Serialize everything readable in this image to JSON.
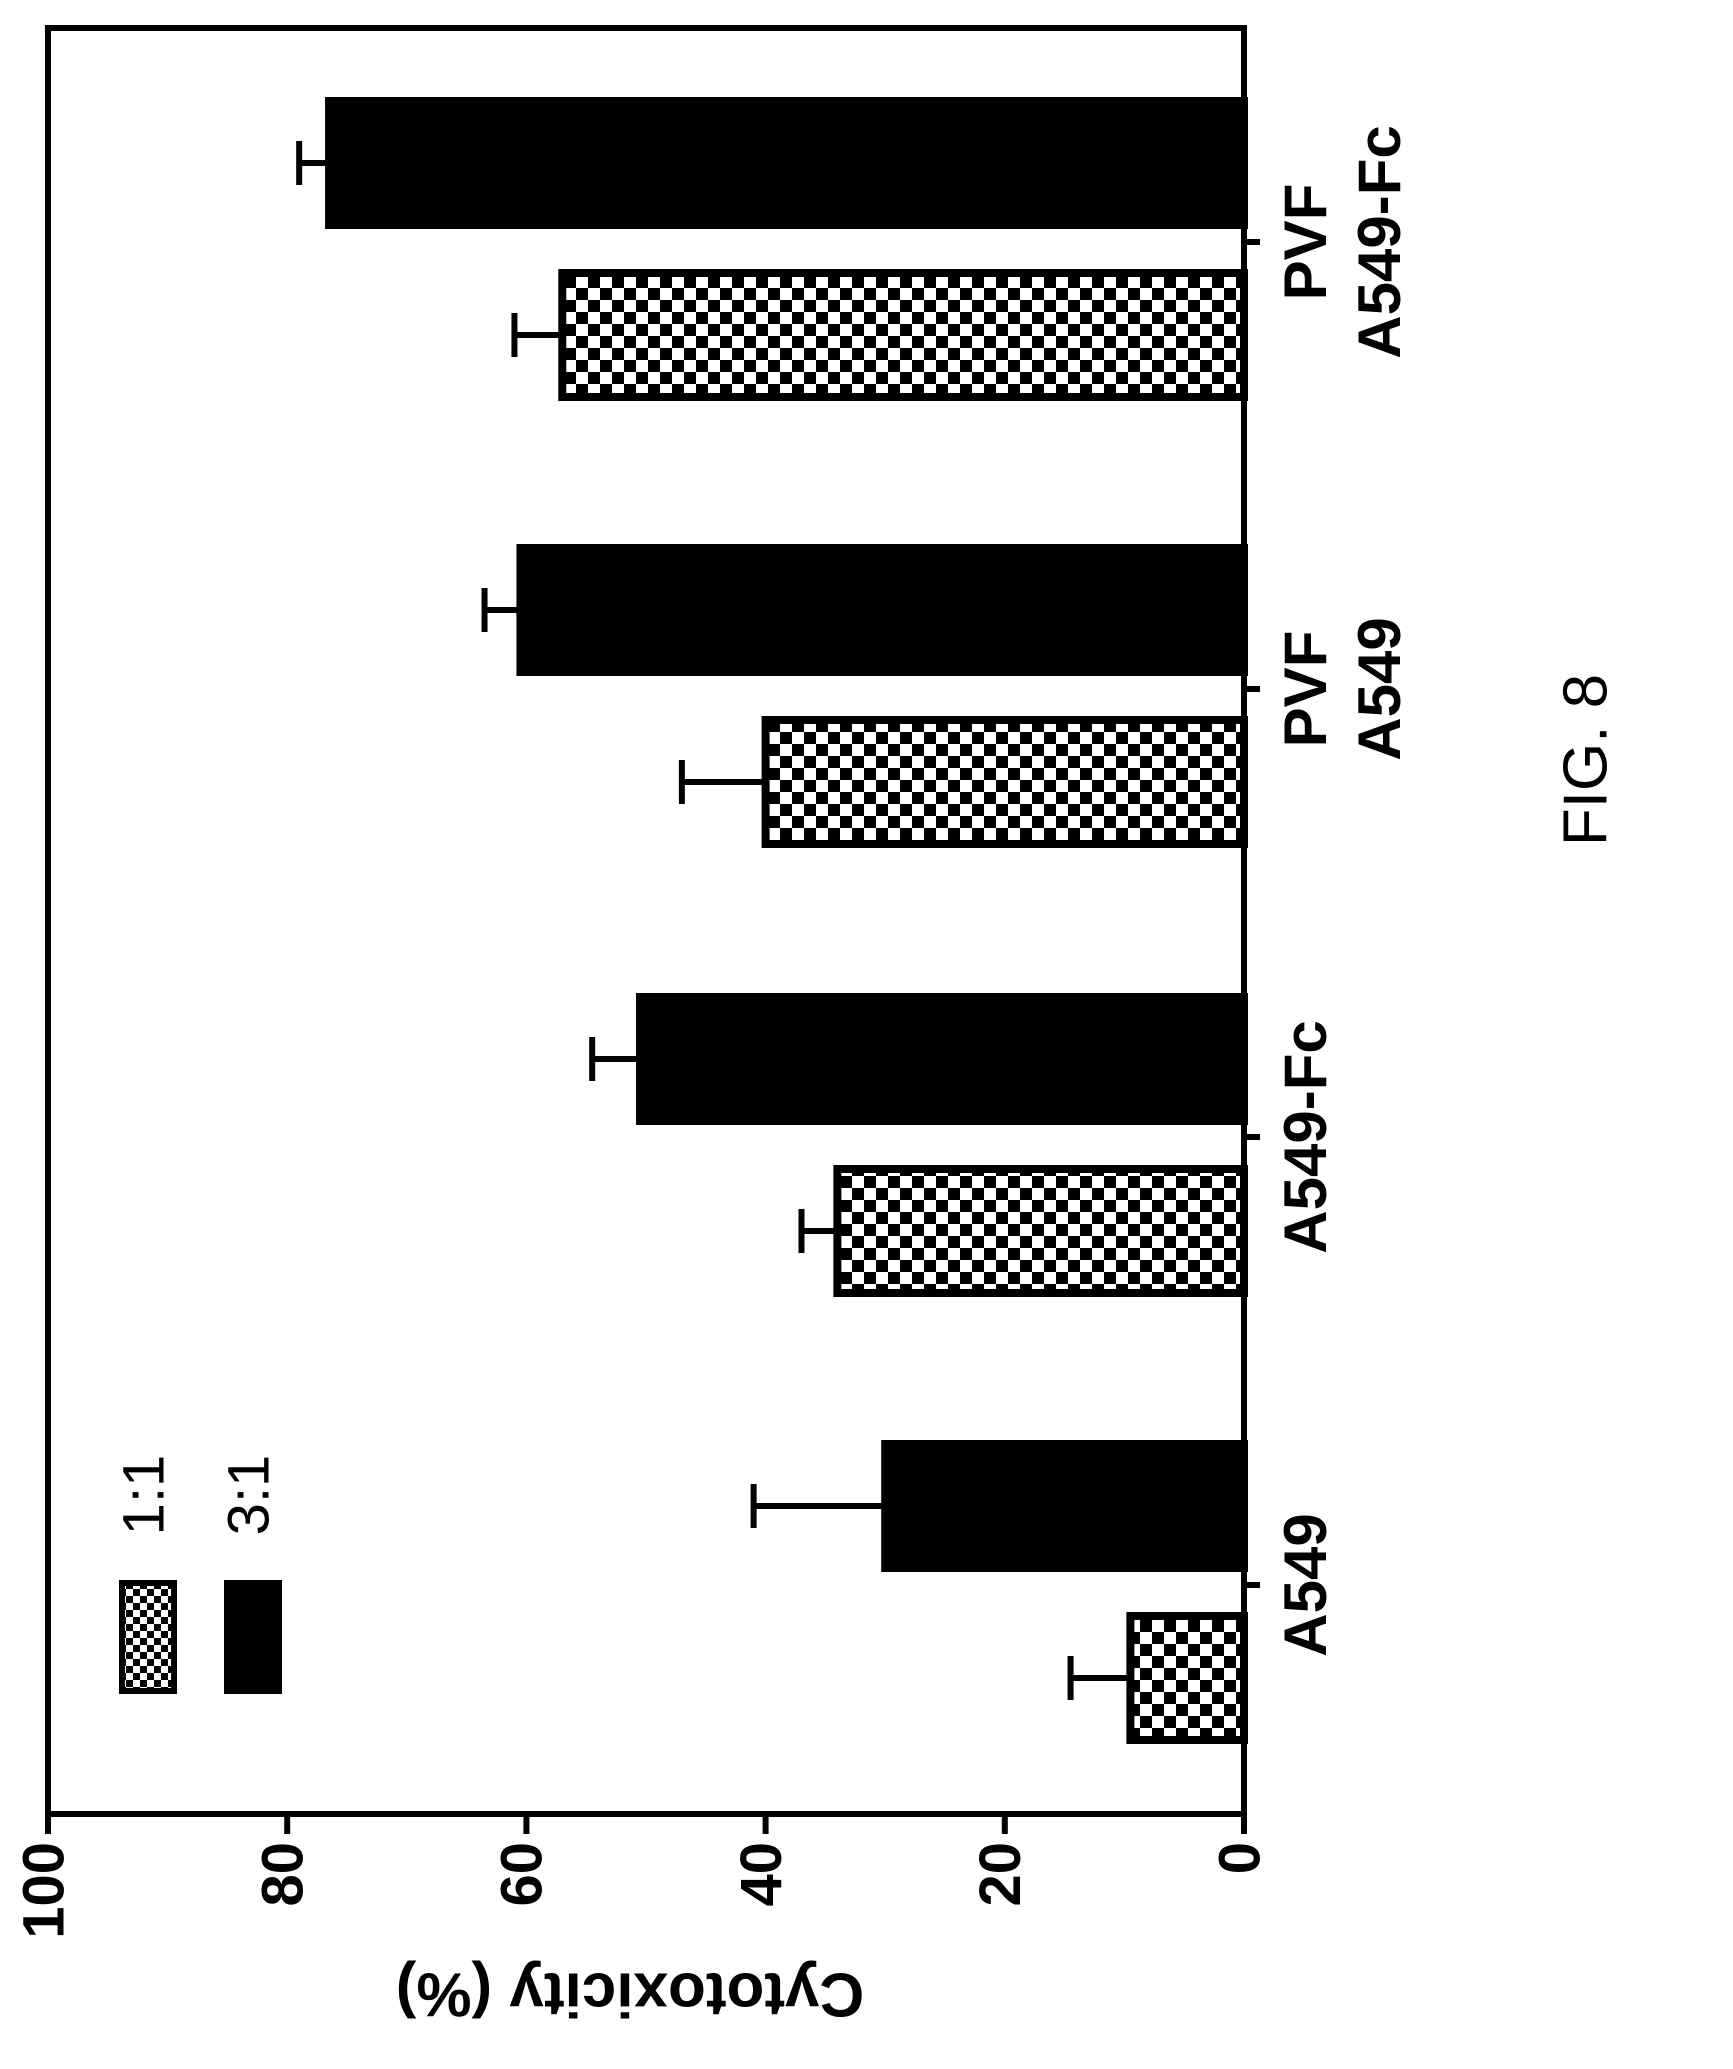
{
  "figure_label": "FIG. 8",
  "colors": {
    "ink": "#000000",
    "paper": "#ffffff"
  },
  "chart_data": {
    "type": "bar",
    "orientation": "horizontal (figure printed rotated 90°)",
    "ylabel": "Cytotoxicity (%)",
    "ylim": [
      0,
      100
    ],
    "yticks": [
      "0",
      "20",
      "40",
      "60",
      "80",
      "100"
    ],
    "categories": [
      [
        "A549"
      ],
      [
        "A549-Fc"
      ],
      [
        "PVF",
        "A549"
      ],
      [
        "PVF",
        "A549-Fc"
      ]
    ],
    "series": [
      {
        "name": "1:1",
        "pattern": "checkerboard",
        "values": [
          9.5,
          34,
          40,
          57
        ],
        "errors": [
          5,
          3,
          7,
          4
        ]
      },
      {
        "name": "3:1",
        "pattern": "solid",
        "values": [
          30,
          50.5,
          60.5,
          76.5
        ],
        "errors": [
          11,
          4,
          3,
          2.5
        ]
      }
    ],
    "legend_position": "top-left",
    "grid": false
  }
}
